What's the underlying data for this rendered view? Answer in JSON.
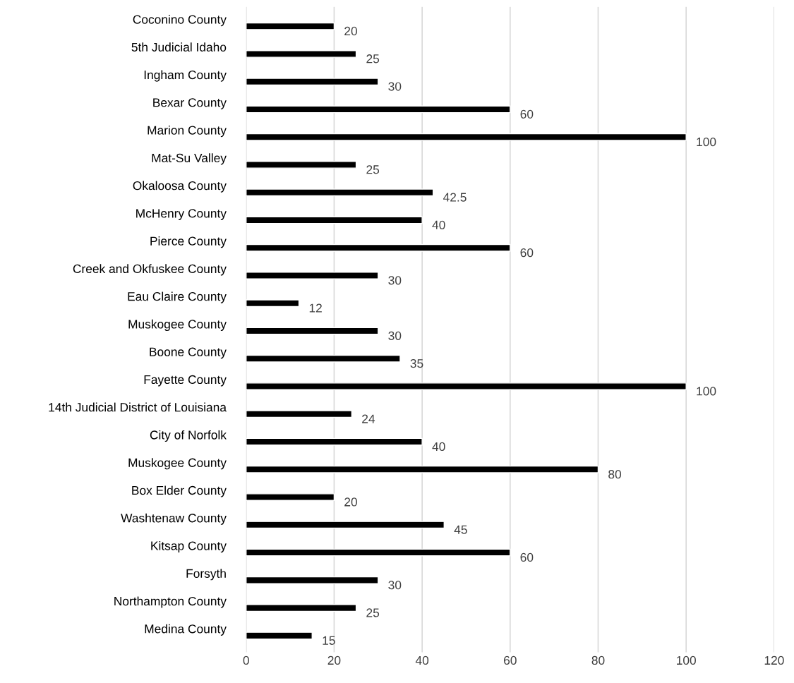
{
  "chart_data": {
    "type": "bar",
    "orientation": "horizontal",
    "categories": [
      "Coconino County",
      "5th Judicial Idaho",
      "Ingham County",
      "Bexar County",
      "Marion County",
      "Mat-Su Valley",
      "Okaloosa County",
      "McHenry County",
      "Pierce County",
      "Creek and Okfuskee County",
      "Eau Claire County",
      "Muskogee County",
      "Boone County",
      "Fayette County",
      "14th Judicial District of Louisiana",
      "City of Norfolk",
      "Muskogee County",
      "Box Elder County",
      "Washtenaw County",
      "Kitsap County",
      "Forsyth",
      "Northampton County",
      "Medina County"
    ],
    "values": [
      20,
      25,
      30,
      60,
      100,
      25,
      42.5,
      40,
      60,
      30,
      12,
      30,
      35,
      100,
      24,
      40,
      80,
      20,
      45,
      60,
      30,
      25,
      15
    ],
    "color": "#000000",
    "xlim": [
      0,
      120
    ],
    "xticks": [
      0,
      20,
      40,
      60,
      80,
      100,
      120
    ],
    "grid": "x",
    "data_labels": true
  }
}
